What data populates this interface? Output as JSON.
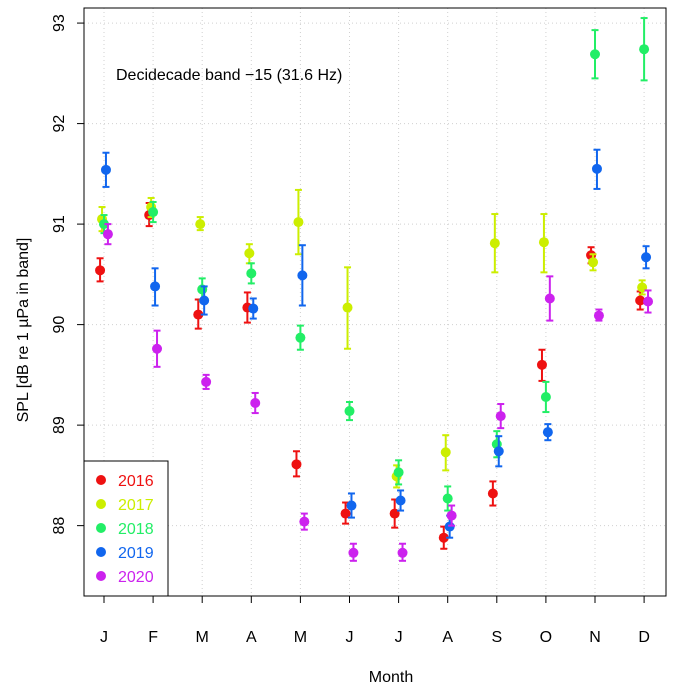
{
  "chart_data": {
    "type": "scatter",
    "annotation": "Decidecade band  −15 (31.6 Hz)",
    "xlabel": "Month",
    "ylabel": "SPL [dB re 1 µPa in band]",
    "categories": [
      "J",
      "F",
      "M",
      "A",
      "M",
      "J",
      "J",
      "A",
      "S",
      "O",
      "N",
      "D"
    ],
    "ylim": [
      87.3,
      93.15
    ],
    "yticks": [
      88,
      89,
      90,
      91,
      92,
      93
    ],
    "grid": true,
    "legend_position": "bottom-left",
    "error_bars": true,
    "series": [
      {
        "name": "2016",
        "color": "#ee1111",
        "x_offset": -0.08,
        "values": [
          90.54,
          91.09,
          90.1,
          90.17,
          88.61,
          88.12,
          88.12,
          87.88,
          88.32,
          89.6,
          90.69,
          90.24
        ],
        "lower": [
          90.43,
          90.98,
          89.96,
          90.02,
          88.49,
          88.02,
          87.98,
          87.77,
          88.2,
          89.44,
          90.61,
          90.15
        ],
        "upper": [
          90.66,
          91.21,
          90.25,
          90.32,
          88.74,
          88.23,
          88.26,
          87.99,
          88.44,
          89.75,
          90.77,
          90.33
        ]
      },
      {
        "name": "2017",
        "color": "#ccee00",
        "x_offset": -0.04,
        "values": [
          91.05,
          91.17,
          91.0,
          90.71,
          91.02,
          90.17,
          88.49,
          88.73,
          90.81,
          90.82,
          90.62,
          90.37
        ],
        "lower": [
          90.93,
          91.07,
          90.94,
          90.61,
          90.7,
          89.76,
          88.38,
          88.55,
          90.52,
          90.52,
          90.54,
          90.3
        ],
        "upper": [
          91.17,
          91.26,
          91.07,
          90.8,
          91.34,
          90.57,
          88.6,
          88.9,
          91.1,
          91.1,
          90.7,
          90.44
        ]
      },
      {
        "name": "2018",
        "color": "#22ee66",
        "x_offset": 0.0,
        "values": [
          91.0,
          91.12,
          90.35,
          90.51,
          89.87,
          89.14,
          88.53,
          88.27,
          88.81,
          89.28,
          92.69,
          92.74
        ],
        "lower": [
          90.91,
          91.02,
          90.24,
          90.41,
          89.75,
          89.05,
          88.41,
          88.15,
          88.68,
          89.13,
          92.45,
          92.43
        ],
        "upper": [
          91.09,
          91.22,
          90.46,
          90.61,
          89.99,
          89.23,
          88.65,
          88.39,
          88.94,
          89.43,
          92.93,
          93.05
        ]
      },
      {
        "name": "2019",
        "color": "#1166ee",
        "x_offset": 0.04,
        "values": [
          91.54,
          90.38,
          90.24,
          90.16,
          90.49,
          88.2,
          88.25,
          87.99,
          88.74,
          88.93,
          91.55,
          90.67
        ],
        "lower": [
          91.37,
          90.19,
          90.1,
          90.06,
          90.19,
          88.08,
          88.15,
          87.88,
          88.59,
          88.85,
          91.35,
          90.56
        ],
        "upper": [
          91.71,
          90.56,
          90.38,
          90.26,
          90.79,
          88.32,
          88.35,
          88.1,
          88.89,
          89.01,
          91.74,
          90.78
        ]
      },
      {
        "name": "2020",
        "color": "#cc22ee",
        "x_offset": 0.08,
        "values": [
          90.9,
          89.76,
          89.43,
          89.22,
          88.04,
          87.73,
          87.73,
          88.1,
          89.09,
          90.26,
          90.09,
          90.23
        ],
        "lower": [
          90.8,
          89.58,
          89.36,
          89.12,
          87.96,
          87.65,
          87.65,
          88.0,
          88.97,
          90.04,
          90.04,
          90.12
        ],
        "upper": [
          91.0,
          89.94,
          89.5,
          89.32,
          88.12,
          87.82,
          87.82,
          88.2,
          89.21,
          90.48,
          90.15,
          90.34
        ]
      }
    ]
  }
}
